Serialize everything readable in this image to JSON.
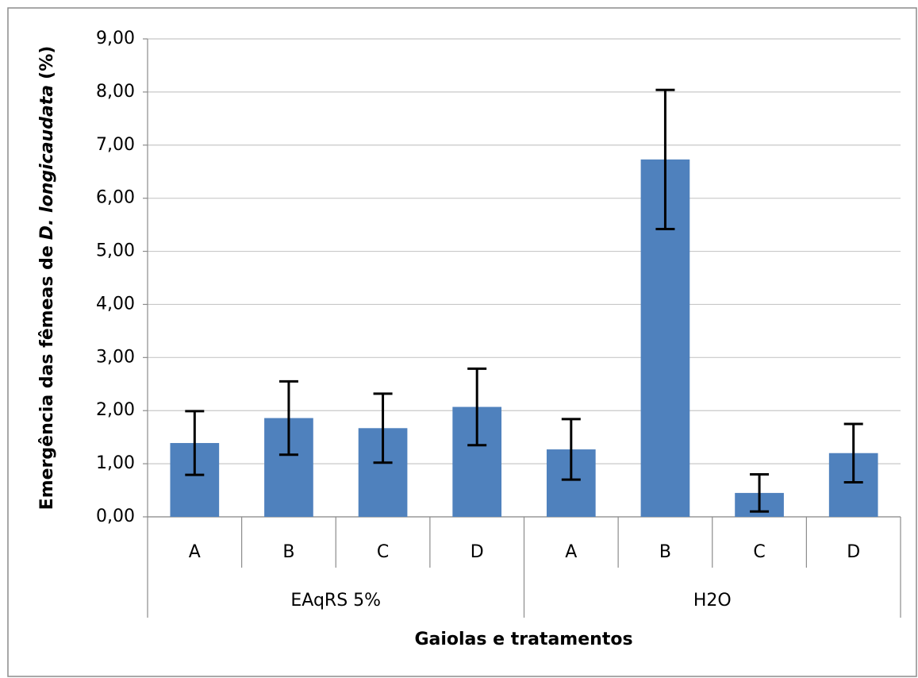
{
  "chart_data": {
    "type": "bar",
    "categories": [
      "A",
      "B",
      "C",
      "D",
      "A",
      "B",
      "C",
      "D"
    ],
    "groups": [
      "EAqRS 5%",
      "H2O"
    ],
    "series": [
      {
        "color": "#4f81bd",
        "values": [
          1.39,
          1.86,
          1.67,
          2.07,
          1.27,
          6.73,
          0.45,
          1.2
        ],
        "errors": [
          0.6,
          0.69,
          0.65,
          0.72,
          0.57,
          1.31,
          0.35,
          0.55
        ]
      }
    ],
    "ylim": [
      0,
      9
    ],
    "yticks": [
      {
        "value": 0,
        "label": "0,00"
      },
      {
        "value": 1,
        "label": "1,00"
      },
      {
        "value": 2,
        "label": "2,00"
      },
      {
        "value": 3,
        "label": "3,00"
      },
      {
        "value": 4,
        "label": "4,00"
      },
      {
        "value": 5,
        "label": "5,00"
      },
      {
        "value": 6,
        "label": "6,00"
      },
      {
        "value": 7,
        "label": "7,00"
      },
      {
        "value": 8,
        "label": "8,00"
      },
      {
        "value": 9,
        "label": "9,00"
      }
    ],
    "ylabel": {
      "text": "Emergência das fêmeas de",
      "italic": "D. longicaudata",
      "unit": "(%)"
    },
    "xlabel": "Gaiolas e tratamentos",
    "grid": true
  }
}
